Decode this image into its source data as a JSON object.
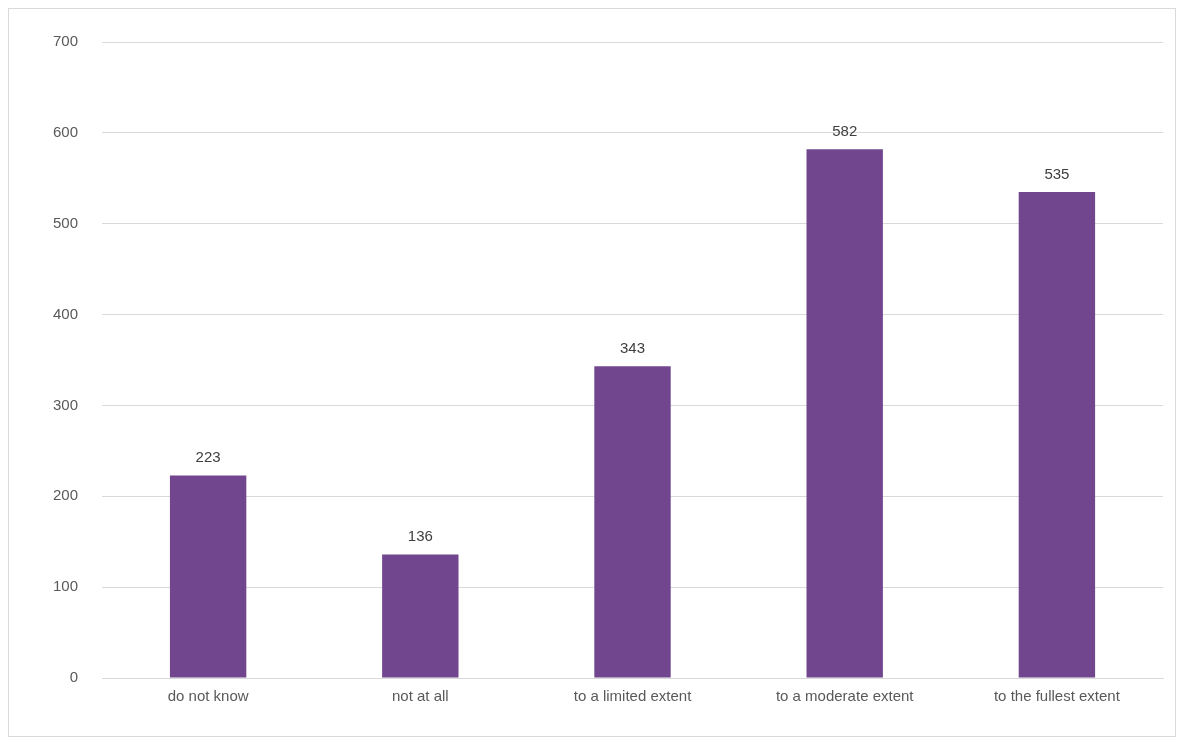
{
  "chart_data": {
    "type": "bar",
    "categories": [
      "do not know",
      "not at all",
      "to a limited extent",
      "to a moderate extent",
      "to the fullest extent"
    ],
    "values": [
      223,
      136,
      343,
      582,
      535
    ],
    "color": "#71468f",
    "ylim": [
      0,
      700
    ],
    "yticks": [
      0,
      100,
      200,
      300,
      400,
      500,
      600,
      700
    ],
    "grid": "y",
    "data_labels": true,
    "legend": false
  }
}
